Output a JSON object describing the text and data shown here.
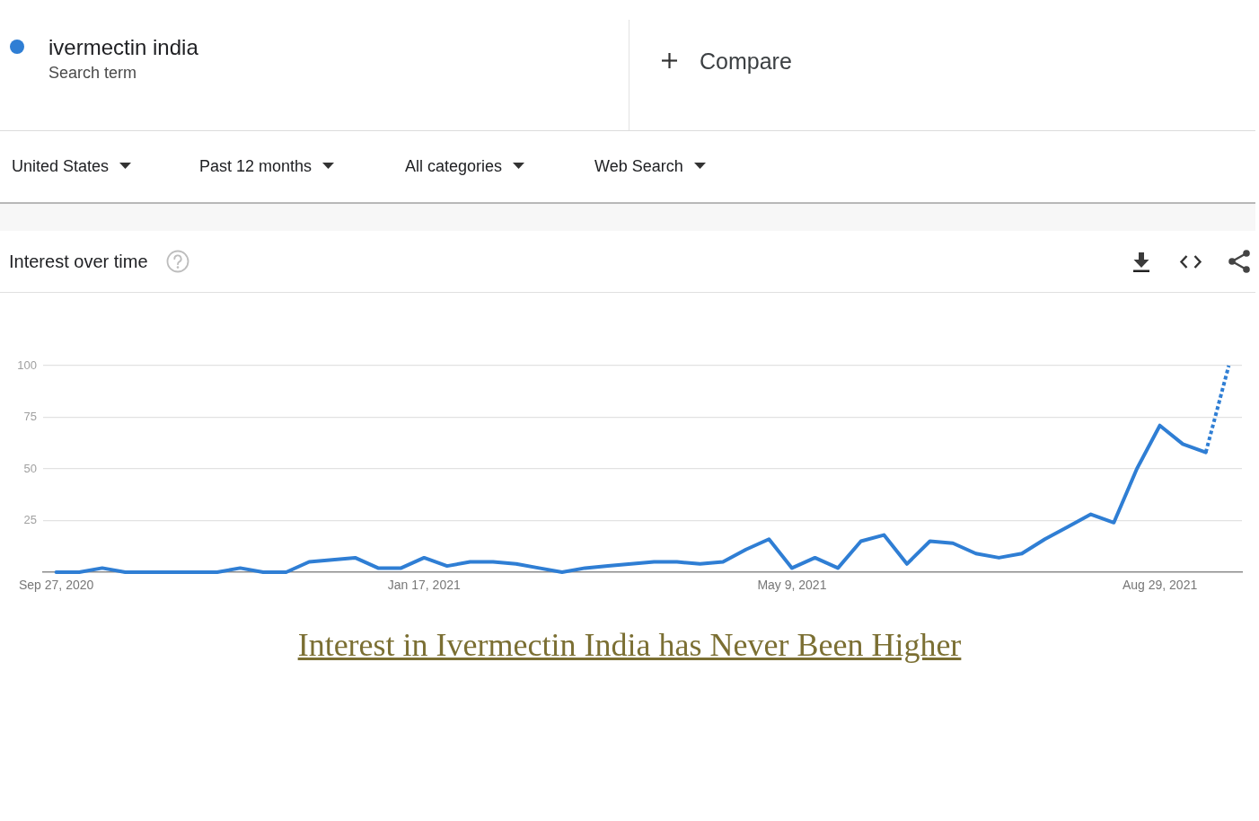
{
  "chart_data": {
    "type": "line",
    "title": "Interest over time",
    "annotations": [
      "Search term",
      "Compare",
      "United States",
      "Past 12 months",
      "All categories",
      "Web Search",
      "Interest in Ivermectin India has Never Been Higher"
    ],
    "series": [
      {
        "name": "ivermectin india",
        "color": "#2f7ed4",
        "x": [
          "2020-09-27",
          "2020-10-04",
          "2020-10-11",
          "2020-10-18",
          "2020-10-25",
          "2020-11-01",
          "2020-11-08",
          "2020-11-15",
          "2020-11-22",
          "2020-11-29",
          "2020-12-06",
          "2020-12-13",
          "2020-12-20",
          "2020-12-27",
          "2021-01-03",
          "2021-01-10",
          "2021-01-17",
          "2021-01-24",
          "2021-01-31",
          "2021-02-07",
          "2021-02-14",
          "2021-02-21",
          "2021-02-28",
          "2021-03-07",
          "2021-03-14",
          "2021-03-21",
          "2021-03-28",
          "2021-04-04",
          "2021-04-11",
          "2021-04-18",
          "2021-04-25",
          "2021-05-02",
          "2021-05-09",
          "2021-05-16",
          "2021-05-23",
          "2021-05-30",
          "2021-06-06",
          "2021-06-13",
          "2021-06-20",
          "2021-06-27",
          "2021-07-04",
          "2021-07-11",
          "2021-07-18",
          "2021-07-25",
          "2021-08-01",
          "2021-08-08",
          "2021-08-15",
          "2021-08-22",
          "2021-08-29",
          "2021-09-05",
          "2021-09-12"
        ],
        "values": [
          0,
          0,
          2,
          0,
          0,
          0,
          0,
          0,
          2,
          0,
          0,
          5,
          6,
          7,
          2,
          2,
          7,
          3,
          5,
          5,
          4,
          2,
          0,
          2,
          3,
          4,
          5,
          5,
          4,
          5,
          11,
          16,
          2,
          7,
          2,
          15,
          18,
          4,
          15,
          14,
          9,
          7,
          9,
          16,
          22,
          28,
          24,
          50,
          71,
          62,
          58
        ]
      },
      {
        "color": "#2f7ed4",
        "line_style": "dotted",
        "x": [
          "2021-09-12",
          "2021-09-19"
        ],
        "values": [
          58,
          100
        ]
      }
    ],
    "xlim": [
      "2020-09-23",
      "2021-09-23"
    ],
    "xticks": [
      {
        "value": "2020-09-27",
        "label": "Sep 27, 2020"
      },
      {
        "value": "2021-01-17",
        "label": "Jan 17, 2021"
      },
      {
        "value": "2021-05-09",
        "label": "May 9, 2021"
      },
      {
        "value": "2021-08-29",
        "label": "Aug 29, 2021"
      }
    ],
    "ylim": [
      0,
      100
    ],
    "yticks": [
      25,
      50,
      75,
      100
    ],
    "grid": "y",
    "legend": "top left",
    "marker": "none",
    "line_style": "solid"
  }
}
